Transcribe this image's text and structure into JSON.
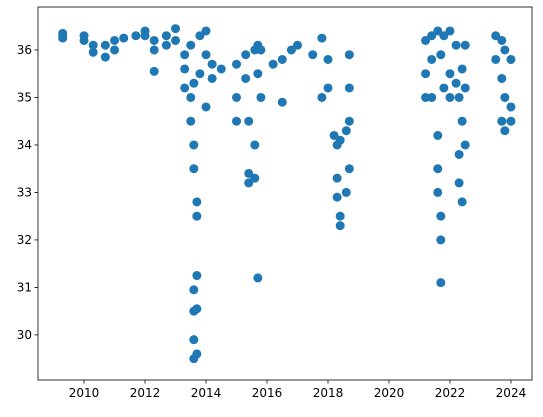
{
  "chart_data": {
    "type": "scatter",
    "x": [
      2009.3,
      2009.3,
      2009.3,
      2010.0,
      2010.0,
      2010.3,
      2010.3,
      2010.7,
      2010.7,
      2011.0,
      2011.0,
      2011.3,
      2011.7,
      2012.0,
      2012.0,
      2012.3,
      2012.3,
      2012.3,
      2012.7,
      2012.7,
      2013.0,
      2013.0,
      2013.3,
      2013.3,
      2013.3,
      2013.5,
      2013.5,
      2013.5,
      2013.6,
      2013.6,
      2013.6,
      2013.6,
      2013.6,
      2013.6,
      2013.6,
      2013.7,
      2013.7,
      2013.7,
      2013.7,
      2013.7,
      2013.8,
      2013.8,
      2014.0,
      2014.0,
      2014.0,
      2014.2,
      2014.2,
      2014.5,
      2015.0,
      2015.0,
      2015.0,
      2015.3,
      2015.3,
      2015.4,
      2015.4,
      2015.4,
      2015.6,
      2015.6,
      2015.6,
      2015.7,
      2015.7,
      2015.7,
      2015.8,
      2015.8,
      2016.2,
      2016.5,
      2016.5,
      2016.8,
      2017.0,
      2017.5,
      2017.8,
      2017.8,
      2018.0,
      2018.0,
      2018.2,
      2018.3,
      2018.3,
      2018.3,
      2018.4,
      2018.4,
      2018.4,
      2018.6,
      2018.6,
      2018.7,
      2018.7,
      2018.7,
      2018.7,
      2021.2,
      2021.2,
      2021.2,
      2021.4,
      2021.4,
      2021.4,
      2021.6,
      2021.6,
      2021.6,
      2021.6,
      2021.7,
      2021.7,
      2021.7,
      2021.7,
      2021.8,
      2021.8,
      2022.0,
      2022.0,
      2022.0,
      2022.2,
      2022.2,
      2022.3,
      2022.3,
      2022.3,
      2022.4,
      2022.4,
      2022.4,
      2022.5,
      2022.5,
      2022.5,
      2023.5,
      2023.5,
      2023.7,
      2023.7,
      2023.7,
      2023.8,
      2023.8,
      2023.8,
      2024.0,
      2024.0,
      2024.0
    ],
    "values": [
      36.35,
      36.25,
      36.3,
      36.3,
      36.2,
      36.1,
      35.95,
      36.1,
      35.85,
      36.0,
      36.2,
      36.25,
      36.3,
      36.4,
      36.3,
      36.2,
      35.55,
      36.0,
      36.3,
      36.1,
      36.45,
      36.2,
      35.9,
      35.6,
      35.2,
      36.1,
      35.0,
      34.5,
      35.3,
      34.0,
      33.5,
      30.95,
      30.5,
      29.9,
      29.5,
      32.8,
      32.5,
      31.25,
      30.55,
      29.6,
      36.3,
      35.5,
      36.4,
      35.9,
      34.8,
      35.7,
      35.4,
      35.6,
      35.7,
      35.0,
      34.5,
      35.9,
      35.4,
      34.5,
      33.4,
      33.2,
      36.0,
      34.0,
      33.3,
      36.1,
      35.5,
      31.2,
      36.0,
      35.0,
      35.7,
      35.8,
      34.9,
      36.0,
      36.1,
      35.9,
      36.25,
      35.0,
      35.8,
      35.2,
      34.2,
      34.0,
      33.3,
      32.9,
      34.1,
      32.5,
      32.3,
      34.3,
      33.0,
      35.9,
      35.2,
      34.5,
      33.5,
      36.2,
      35.5,
      35.0,
      36.3,
      35.8,
      35.0,
      36.4,
      34.2,
      33.5,
      33.0,
      35.9,
      32.5,
      32.0,
      31.1,
      36.3,
      35.2,
      36.4,
      35.5,
      35.0,
      36.1,
      35.3,
      35.0,
      33.8,
      33.2,
      35.6,
      32.8,
      34.5,
      36.1,
      34.0,
      35.2,
      36.3,
      35.8,
      36.2,
      35.4,
      34.5,
      36.0,
      35.0,
      34.3,
      35.8,
      34.8,
      34.5
    ],
    "color": "#1f77b4",
    "xlim": [
      2008.49,
      2024.69
    ],
    "xticks": [
      2010,
      2012,
      2014,
      2016,
      2018,
      2020,
      2022,
      2024
    ],
    "ylim": [
      29.05,
      36.905
    ],
    "yticks": [
      30,
      31,
      32,
      33,
      34,
      35,
      36
    ]
  }
}
